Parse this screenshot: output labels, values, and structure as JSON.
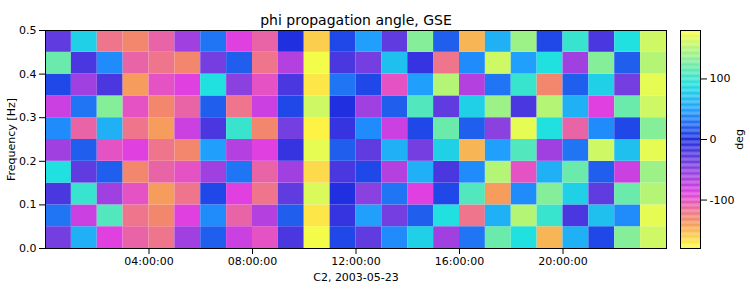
{
  "chart_data": {
    "type": "heatmap",
    "title": "phi propagation angle, GSE",
    "xlabel": "C2, 2003-05-23",
    "ylabel": "Frequency [Hz]",
    "xlim": [
      0,
      24
    ],
    "xticks": [
      {
        "value": 4,
        "label": "04:00:00"
      },
      {
        "value": 8,
        "label": "08:00:00"
      },
      {
        "value": 12,
        "label": "12:00:00"
      },
      {
        "value": 16,
        "label": "16:00:00"
      },
      {
        "value": 20,
        "label": "20:00:00"
      }
    ],
    "ylim": [
      0,
      0.5
    ],
    "yticks": [
      {
        "value": 0,
        "label": "0.0"
      },
      0.1,
      0.2,
      0.3,
      0.4,
      0.5
    ],
    "time_edges": [
      0,
      1,
      2,
      3,
      4,
      5,
      6,
      7,
      8,
      9,
      10,
      11,
      12,
      13,
      14,
      15,
      16,
      17,
      18,
      19,
      20,
      21,
      22,
      23,
      24
    ],
    "frequency_edges": [
      0,
      0.05,
      0.1,
      0.15,
      0.2,
      0.25,
      0.3,
      0.35,
      0.4,
      0.45,
      0.5
    ],
    "cells": [
      [
        -40,
        60,
        -90,
        -110,
        -120,
        -60,
        20,
        -80,
        -100,
        -20,
        175,
        10,
        -30,
        40,
        80,
        -60,
        30,
        120,
        90,
        -150,
        60,
        10,
        130,
        160
      ],
      [
        30,
        -80,
        110,
        -120,
        -130,
        -90,
        40,
        -110,
        -70,
        20,
        -170,
        -10,
        50,
        -40,
        20,
        90,
        -120,
        60,
        150,
        100,
        -20,
        70,
        40,
        170
      ],
      [
        -20,
        100,
        -60,
        -100,
        -140,
        -120,
        10,
        -90,
        -120,
        -30,
        165,
        0,
        -50,
        30,
        -90,
        10,
        110,
        -140,
        40,
        130,
        80,
        -30,
        120,
        150
      ],
      [
        90,
        -30,
        20,
        -130,
        -110,
        -100,
        -60,
        30,
        -110,
        -60,
        -165,
        -20,
        10,
        -70,
        60,
        -20,
        40,
        150,
        -100,
        60,
        120,
        20,
        -80,
        140
      ],
      [
        -60,
        20,
        -100,
        -90,
        -120,
        -130,
        50,
        -70,
        -90,
        -10,
        170,
        20,
        -30,
        60,
        -40,
        80,
        -150,
        50,
        110,
        -60,
        30,
        160,
        70,
        170
      ],
      [
        40,
        -110,
        60,
        -120,
        -140,
        -80,
        -20,
        100,
        -130,
        -40,
        -175,
        -10,
        40,
        -80,
        10,
        120,
        20,
        -50,
        170,
        90,
        -110,
        40,
        10,
        130
      ],
      [
        -80,
        30,
        130,
        -100,
        -130,
        -110,
        20,
        -120,
        -80,
        10,
        160,
        0,
        -60,
        20,
        110,
        -30,
        80,
        140,
        -20,
        150,
        60,
        -90,
        120,
        160
      ],
      [
        10,
        -60,
        -20,
        -140,
        -100,
        -90,
        90,
        -50,
        -100,
        -20,
        -170,
        30,
        10,
        -100,
        50,
        150,
        -70,
        30,
        100,
        -130,
        20,
        80,
        -40,
        170
      ],
      [
        120,
        -20,
        40,
        -110,
        -120,
        -130,
        -40,
        20,
        -120,
        -70,
        175,
        -20,
        -40,
        70,
        -10,
        -120,
        40,
        160,
        50,
        90,
        -60,
        130,
        20,
        150
      ],
      [
        -30,
        80,
        -120,
        -130,
        -110,
        -60,
        30,
        -90,
        -110,
        0,
        -160,
        10,
        50,
        -30,
        130,
        20,
        -150,
        60,
        140,
        10,
        100,
        -20,
        90,
        160
      ]
    ],
    "colorbar": {
      "range": [
        -180,
        180
      ],
      "ticks": [
        -100,
        0,
        100
      ],
      "label": "deg"
    }
  }
}
